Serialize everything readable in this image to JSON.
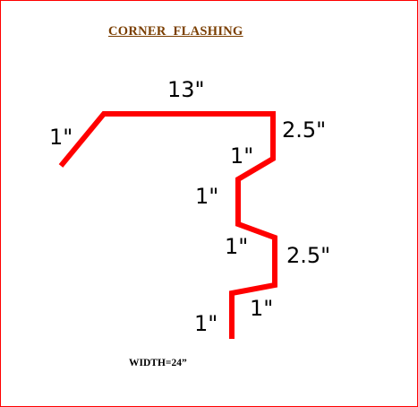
{
  "title": "CORNER  FLASHING",
  "colors": {
    "border": "#ff0000",
    "profile": "#ff0000",
    "title": "#7a3e00",
    "text": "#000000"
  },
  "dimensions": {
    "top_width": "13\"",
    "left_hem": "1\"",
    "first_drop": "2.5\"",
    "jog_1": "1\"",
    "jog_2": "1\"",
    "jog_3": "1\"",
    "second_drop": "2.5\"",
    "jog_4": "1\"",
    "bottom_leg": "1\""
  },
  "width_note": "WIDTH=24”"
}
